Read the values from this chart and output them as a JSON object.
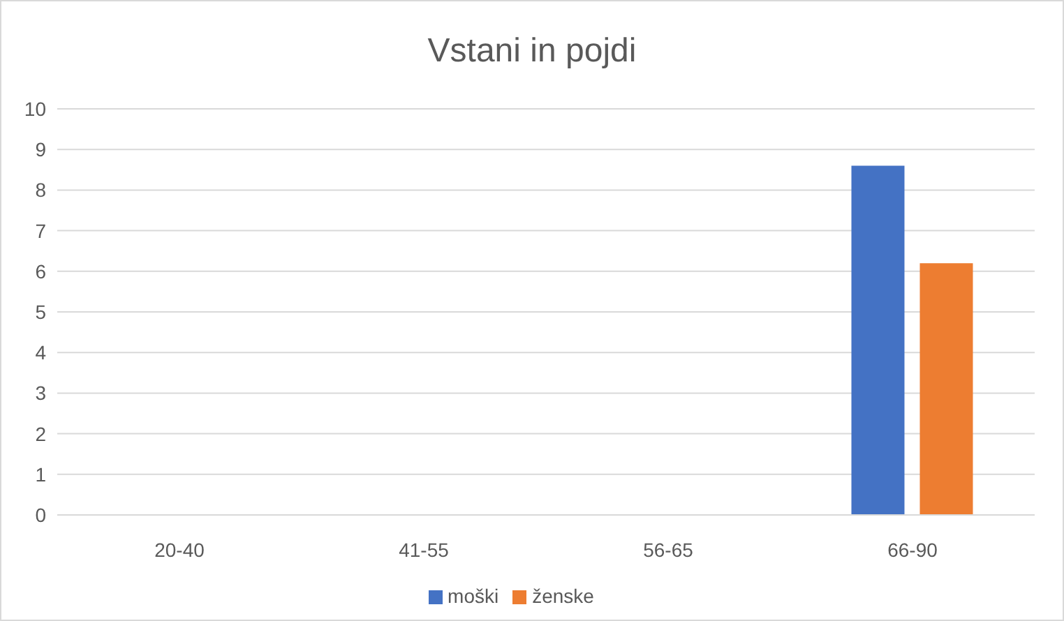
{
  "chart_data": {
    "type": "bar",
    "title": "Vstani in pojdi",
    "categories": [
      "20-40",
      "41-55",
      "56-65",
      "66-90"
    ],
    "series": [
      {
        "name": "moški",
        "color": "#4472c4",
        "values": [
          null,
          null,
          null,
          8.6
        ]
      },
      {
        "name": "ženske",
        "color": "#ed7d31",
        "values": [
          null,
          null,
          null,
          6.2
        ]
      }
    ],
    "ylim": [
      0,
      10
    ],
    "yticks": [
      0,
      1,
      2,
      3,
      4,
      5,
      6,
      7,
      8,
      9,
      10
    ],
    "grid": "y",
    "legend": "bottom"
  }
}
